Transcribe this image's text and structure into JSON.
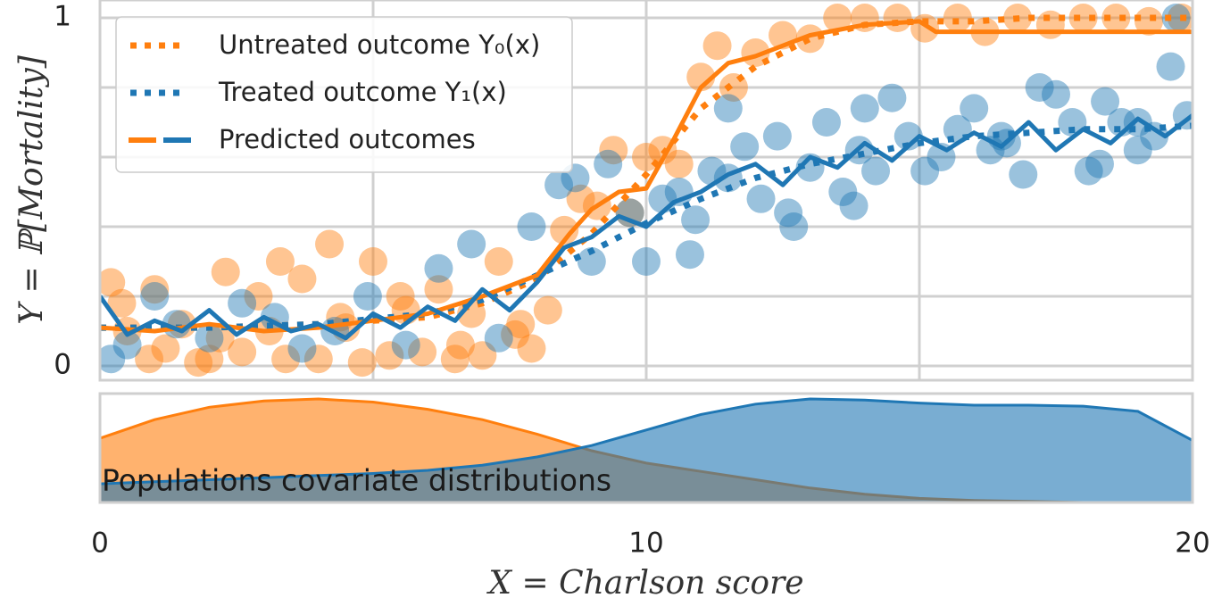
{
  "chart_data": [
    {
      "type": "scatter",
      "panel": "outcomes",
      "ylabel": "Y = ℙ[Mortality]",
      "xlim": [
        0,
        20
      ],
      "ylim": [
        0,
        1
      ],
      "y_tick_labels": [
        "0",
        "1"
      ],
      "grid": true,
      "legend_placement": "top-left",
      "legend": [
        {
          "label": "Untreated outcome Y₀(x)",
          "style": "dotted",
          "color": "#ff7f0e"
        },
        {
          "label": "Treated outcome Y₁(x)",
          "style": "dotted",
          "color": "#1f77b4"
        },
        {
          "label": "Predicted outcomes",
          "style": "dashed-two-color",
          "color": "#ff7f0e"
        }
      ],
      "series": [
        {
          "name": "Untreated outcome Y₀(x)",
          "kind": "true-curve",
          "color": "#ff7f0e",
          "x": [
            0,
            2,
            4,
            6,
            7,
            8,
            9,
            10,
            11,
            12,
            13,
            14,
            15,
            16,
            17,
            18,
            19,
            20
          ],
          "y": [
            0.11,
            0.11,
            0.12,
            0.14,
            0.18,
            0.25,
            0.38,
            0.55,
            0.74,
            0.86,
            0.94,
            0.98,
            0.99,
            0.99,
            1.0,
            1.0,
            1.0,
            1.0
          ]
        },
        {
          "name": "Treated outcome Y₁(x)",
          "kind": "true-curve",
          "color": "#1f77b4",
          "x": [
            0,
            2,
            4,
            6,
            7,
            8,
            9,
            10,
            11,
            12,
            13,
            14,
            15,
            16,
            17,
            18,
            19,
            20
          ],
          "y": [
            0.11,
            0.11,
            0.12,
            0.15,
            0.19,
            0.26,
            0.33,
            0.41,
            0.48,
            0.54,
            0.58,
            0.61,
            0.64,
            0.66,
            0.67,
            0.68,
            0.68,
            0.69
          ]
        },
        {
          "name": "Predicted untreated",
          "kind": "prediction",
          "color": "#ff7f0e",
          "x": [
            0,
            1,
            2,
            3,
            4,
            5,
            6,
            7,
            8,
            8.6,
            9,
            9.5,
            10,
            10.5,
            11,
            11.5,
            12,
            13,
            14,
            15,
            15.3,
            16,
            17,
            18,
            19,
            20
          ],
          "y": [
            0.11,
            0.1,
            0.12,
            0.1,
            0.11,
            0.13,
            0.15,
            0.2,
            0.26,
            0.38,
            0.45,
            0.5,
            0.51,
            0.65,
            0.8,
            0.87,
            0.89,
            0.95,
            0.98,
            0.99,
            0.96,
            0.96,
            0.96,
            0.96,
            0.96,
            0.96
          ]
        },
        {
          "name": "Predicted treated",
          "kind": "prediction",
          "color": "#1f77b4",
          "x": [
            0,
            0.5,
            1,
            1.5,
            2,
            2.5,
            3,
            3.5,
            4,
            4.5,
            5,
            5.5,
            6,
            6.5,
            7,
            7.5,
            8,
            8.5,
            9,
            9.5,
            10,
            10.5,
            11,
            11.5,
            12,
            12.5,
            13,
            13.5,
            14,
            14.5,
            15,
            15.5,
            16,
            16.5,
            17,
            17.5,
            18,
            18.5,
            19,
            19.5,
            20
          ],
          "y": [
            0.2,
            0.09,
            0.13,
            0.1,
            0.16,
            0.09,
            0.14,
            0.1,
            0.12,
            0.08,
            0.15,
            0.11,
            0.17,
            0.13,
            0.22,
            0.16,
            0.24,
            0.34,
            0.37,
            0.43,
            0.4,
            0.47,
            0.5,
            0.55,
            0.58,
            0.52,
            0.6,
            0.57,
            0.64,
            0.59,
            0.66,
            0.62,
            0.67,
            0.63,
            0.7,
            0.62,
            0.68,
            0.64,
            0.71,
            0.66,
            0.72
          ]
        },
        {
          "name": "Untreated samples",
          "kind": "scatter",
          "color": "#ff7f0e",
          "x": [
            0.2,
            0.5,
            0.9,
            1.2,
            1.5,
            1.8,
            2.0,
            2.3,
            2.6,
            2.9,
            3.1,
            3.4,
            3.7,
            4.0,
            4.2,
            4.5,
            4.8,
            5.0,
            5.3,
            5.6,
            5.9,
            6.2,
            6.5,
            6.8,
            7.0,
            7.3,
            7.6,
            7.9,
            8.2,
            8.5,
            8.8,
            9.1,
            9.4,
            9.7,
            10.0,
            10.3,
            10.6,
            11.0,
            11.3,
            11.6,
            12.0,
            12.5,
            13.0,
            13.5,
            14.0,
            14.6,
            15.1,
            15.7,
            16.2,
            16.8,
            17.4,
            18.0,
            18.6,
            19.2,
            19.8,
            0.4,
            1.0,
            2.2,
            3.3,
            4.4,
            5.5,
            6.6,
            7.7
          ],
          "y": [
            0.24,
            0.1,
            0.02,
            0.05,
            0.12,
            0.01,
            0.02,
            0.27,
            0.04,
            0.2,
            0.1,
            0.02,
            0.25,
            0.02,
            0.35,
            0.11,
            0.01,
            0.3,
            0.03,
            0.16,
            0.04,
            0.22,
            0.02,
            0.15,
            0.03,
            0.3,
            0.09,
            0.05,
            0.16,
            0.39,
            0.48,
            0.46,
            0.62,
            0.44,
            0.6,
            0.62,
            0.58,
            0.83,
            0.92,
            0.8,
            0.9,
            0.95,
            0.94,
            1.0,
            1.0,
            1.0,
            0.97,
            1.0,
            0.96,
            1.0,
            0.98,
            1.0,
            1.0,
            0.99,
            1.0,
            0.18,
            0.22,
            0.08,
            0.3,
            0.14,
            0.2,
            0.06,
            0.12
          ]
        },
        {
          "name": "Treated samples",
          "kind": "scatter",
          "color": "#1f77b4",
          "x": [
            0.2,
            0.5,
            1.0,
            1.4,
            2.0,
            2.6,
            3.2,
            3.7,
            4.3,
            4.9,
            5.6,
            6.2,
            6.8,
            7.3,
            7.9,
            8.4,
            8.7,
            9.0,
            9.3,
            9.7,
            10.0,
            10.3,
            10.6,
            10.9,
            11.2,
            11.5,
            11.8,
            12.1,
            12.4,
            12.7,
            13.0,
            13.3,
            13.6,
            13.9,
            14.2,
            14.5,
            14.8,
            15.1,
            15.4,
            15.7,
            16.0,
            16.3,
            16.6,
            16.9,
            17.2,
            17.5,
            17.8,
            18.1,
            18.4,
            18.7,
            19.0,
            19.3,
            19.6,
            19.9,
            19.7,
            10.8,
            12.6,
            14.0,
            16.5,
            18.3,
            19.0,
            11.5,
            13.8
          ],
          "y": [
            0.02,
            0.06,
            0.2,
            0.12,
            0.08,
            0.18,
            0.14,
            0.05,
            0.1,
            0.2,
            0.06,
            0.28,
            0.35,
            0.08,
            0.4,
            0.52,
            0.54,
            0.3,
            0.58,
            0.44,
            0.3,
            0.48,
            0.5,
            0.42,
            0.56,
            0.74,
            0.63,
            0.48,
            0.66,
            0.4,
            0.57,
            0.7,
            0.5,
            0.62,
            0.56,
            0.77,
            0.66,
            0.56,
            0.6,
            0.68,
            0.74,
            0.62,
            0.64,
            0.55,
            0.8,
            0.78,
            0.7,
            0.56,
            0.76,
            0.7,
            0.62,
            0.66,
            0.86,
            0.72,
            1.0,
            0.32,
            0.44,
            0.74,
            0.66,
            0.58,
            0.7,
            0.54,
            0.46
          ]
        }
      ]
    },
    {
      "type": "area",
      "panel": "distributions",
      "annotation": "Populations covariate distributions",
      "xlabel": "X = Charlson score",
      "xlim": [
        0,
        20
      ],
      "x_tick_labels": [
        "0",
        "10",
        "20"
      ],
      "series": [
        {
          "name": "Untreated population",
          "color": "#ff7f0e",
          "x": [
            0,
            1,
            2,
            3,
            4,
            5,
            6,
            7,
            8,
            9,
            10,
            11,
            12,
            13,
            14,
            15,
            16,
            17,
            18,
            19,
            20
          ],
          "y": [
            0.62,
            0.8,
            0.92,
            0.98,
            1.0,
            0.97,
            0.9,
            0.8,
            0.66,
            0.5,
            0.38,
            0.3,
            0.22,
            0.14,
            0.08,
            0.04,
            0.02,
            0.01,
            0.0,
            0.0,
            0.0
          ]
        },
        {
          "name": "Treated population",
          "color": "#1f77b4",
          "x": [
            0,
            1,
            2,
            3,
            4,
            5,
            6,
            7,
            8,
            9,
            10,
            11,
            12,
            13,
            14,
            15,
            16,
            17,
            18,
            19,
            20
          ],
          "y": [
            0.18,
            0.2,
            0.22,
            0.24,
            0.26,
            0.28,
            0.31,
            0.36,
            0.44,
            0.55,
            0.7,
            0.85,
            0.95,
            1.0,
            0.99,
            0.96,
            0.94,
            0.94,
            0.93,
            0.88,
            0.6
          ]
        }
      ]
    }
  ]
}
